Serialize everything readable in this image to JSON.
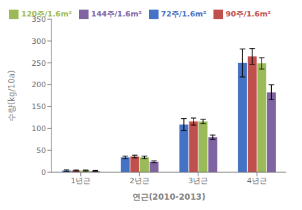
{
  "chart_data": {
    "type": "bar",
    "categories": [
      "1년근",
      "2년근",
      "3년근",
      "4년근"
    ],
    "series": [
      {
        "name": "72주/1.6m²",
        "color": "#4472C4",
        "values": [
          4,
          34,
          109,
          250
        ],
        "errors": [
          1.5,
          3,
          14,
          32
        ]
      },
      {
        "name": "90주/1.6m²",
        "color": "#C0504D",
        "values": [
          4,
          36,
          116,
          265
        ],
        "errors": [
          1,
          3,
          8,
          18
        ]
      },
      {
        "name": "120주/1.6m²",
        "color": "#9BBB59",
        "values": [
          4,
          34,
          116,
          249
        ],
        "errors": [
          1,
          3,
          5,
          13
        ]
      },
      {
        "name": "144주/1.6m²",
        "color": "#8064A2",
        "values": [
          3,
          24,
          80,
          183
        ],
        "errors": [
          1,
          2,
          5,
          17
        ]
      }
    ],
    "ylabel": "수량(kg/10a)",
    "xlabel": "연근(2010-2013)",
    "ylim": [
      0,
      350
    ],
    "yticks": [
      0,
      50,
      100,
      150,
      200,
      250,
      300,
      350
    ],
    "grid": false,
    "legend": "upper left"
  }
}
